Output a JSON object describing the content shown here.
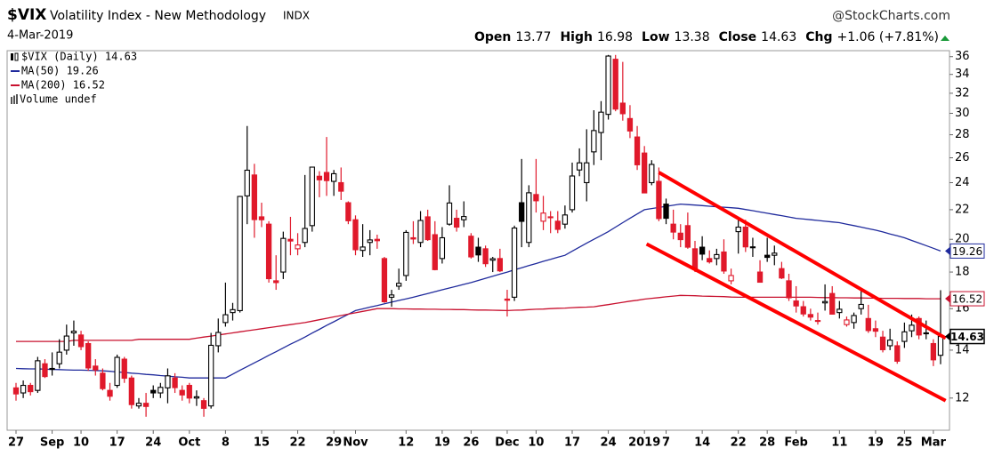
{
  "header": {
    "symbol": "$VIX",
    "name": "Volatility Index - New Methodology",
    "exchange": "INDX",
    "source": "@StockCharts.com",
    "date": "4-Mar-2019",
    "quote": [
      {
        "label": "Open",
        "value": "13.77"
      },
      {
        "label": "High",
        "value": "16.98"
      },
      {
        "label": "Low",
        "value": "13.38"
      },
      {
        "label": "Close",
        "value": "14.63"
      },
      {
        "label": "Chg",
        "value": "+1.06 (+7.81%)"
      }
    ]
  },
  "chart_data": {
    "type": "candlestick",
    "log_scale": true,
    "grid": false,
    "legend": "upper left",
    "up_color": "#000000",
    "down_color": "#e0192b",
    "volume_label": "Volume undef",
    "ylim": [
      10.82,
      36.7
    ],
    "yticks": [
      12,
      14,
      16,
      18,
      20,
      22,
      24,
      26,
      28,
      30,
      32,
      34,
      36
    ],
    "categories": [
      "27",
      null,
      null,
      null,
      null,
      "Sep",
      null,
      null,
      null,
      "10",
      null,
      null,
      null,
      null,
      "17",
      null,
      null,
      null,
      null,
      "24",
      null,
      null,
      null,
      null,
      "Oct",
      null,
      null,
      null,
      null,
      "8",
      null,
      null,
      null,
      null,
      "15",
      null,
      null,
      null,
      null,
      "22",
      null,
      null,
      null,
      null,
      "29",
      null,
      null,
      "Nov",
      null,
      null,
      null,
      null,
      null,
      null,
      "12",
      null,
      null,
      null,
      null,
      "19",
      null,
      null,
      null,
      "26",
      null,
      null,
      null,
      null,
      "Dec",
      null,
      null,
      null,
      "10",
      null,
      null,
      null,
      null,
      "17",
      null,
      null,
      null,
      null,
      "24",
      null,
      null,
      null,
      null,
      "2019",
      null,
      null,
      "7",
      null,
      null,
      null,
      null,
      "14",
      null,
      null,
      null,
      null,
      "22",
      null,
      null,
      null,
      "28",
      null,
      null,
      null,
      "Feb",
      null,
      null,
      null,
      null,
      null,
      "11",
      null,
      null,
      null,
      null,
      "19",
      null,
      null,
      null,
      "25",
      null,
      null,
      null,
      "Mar",
      null
    ],
    "series": [
      {
        "name": "$VIX (Daily) 14.63",
        "last_label": "14.63",
        "open": [
          12.4,
          12.2,
          12.5,
          12.3,
          13.4,
          13.2,
          13.4,
          14.0,
          14.8,
          14.7,
          14.3,
          13.3,
          13.0,
          12.3,
          12.5,
          13.6,
          12.8,
          11.7,
          11.8,
          12.3,
          12.2,
          12.4,
          12.8,
          12.3,
          12.5,
          12.0,
          11.9,
          11.7,
          14.2,
          15.3,
          15.8,
          15.9,
          23.0,
          24.6,
          21.5,
          21.0,
          17.5,
          18.0,
          20.0,
          19.4,
          19.8,
          20.9,
          24.5,
          24.8,
          24.1,
          24.0,
          22.5,
          21.3,
          19.3,
          19.8,
          20.0,
          18.8,
          16.6,
          17.2,
          17.8,
          20.1,
          19.8,
          21.5,
          20.3,
          18.8,
          21.0,
          21.4,
          21.3,
          20.2,
          19.5,
          19.4,
          18.7,
          18.8,
          16.5,
          16.6,
          22.5,
          19.8,
          23.1,
          21.2,
          21.5,
          21.2,
          21.0,
          22.0,
          25.0,
          24.0,
          26.5,
          28.2,
          29.9,
          35.7,
          31.0,
          29.5,
          27.8,
          26.4,
          24.0,
          24.1,
          22.4,
          21.0,
          20.4,
          20.9,
          19.4,
          19.5,
          18.8,
          18.8,
          19.2,
          17.5,
          20.5,
          20.8,
          19.5,
          18.0,
          19.0,
          19.0,
          18.2,
          17.5,
          16.4,
          16.1,
          15.7,
          15.4,
          16.3,
          16.8,
          15.8,
          15.2,
          15.3,
          16.0,
          15.5,
          15.0,
          14.6,
          14.2,
          14.2,
          14.4,
          14.9,
          15.5,
          14.8,
          14.3,
          13.77
        ],
        "high": [
          12.6,
          12.7,
          12.6,
          13.7,
          13.6,
          13.9,
          14.5,
          15.2,
          15.4,
          14.9,
          14.4,
          13.6,
          13.2,
          12.6,
          13.8,
          13.7,
          12.9,
          12.0,
          12.2,
          12.5,
          12.6,
          13.2,
          13.0,
          12.5,
          12.6,
          12.3,
          12.0,
          14.8,
          15.5,
          17.4,
          16.3,
          23.0,
          28.8,
          25.5,
          22.5,
          21.2,
          19.0,
          20.5,
          21.5,
          20.4,
          24.6,
          25.2,
          24.9,
          27.8,
          25.0,
          25.2,
          22.6,
          21.6,
          21.0,
          20.6,
          20.3,
          18.9,
          17.0,
          18.2,
          20.6,
          21.2,
          21.9,
          22.0,
          21.2,
          20.8,
          23.8,
          22.0,
          22.6,
          20.4,
          20.1,
          19.6,
          18.9,
          19.4,
          17.0,
          20.9,
          25.9,
          23.8,
          25.9,
          23.0,
          21.9,
          21.9,
          22.3,
          25.6,
          26.8,
          28.5,
          30.3,
          31.2,
          36.2,
          36.2,
          35.4,
          30.8,
          28.8,
          27.0,
          25.8,
          25.2,
          22.8,
          22.0,
          21.0,
          21.8,
          19.9,
          20.2,
          19.3,
          19.4,
          20.0,
          18.2,
          21.3,
          21.3,
          20.1,
          18.7,
          20.1,
          19.6,
          18.6,
          17.9,
          17.2,
          16.4,
          16.0,
          15.8,
          17.3,
          17.2,
          16.4,
          15.6,
          15.8,
          17.0,
          16.2,
          15.4,
          14.9,
          15.0,
          14.4,
          15.3,
          15.7,
          15.6,
          15.4,
          14.5,
          16.98
        ],
        "low": [
          11.9,
          12.0,
          12.1,
          12.2,
          12.8,
          12.9,
          13.2,
          13.8,
          14.2,
          14.0,
          13.1,
          12.9,
          12.3,
          11.9,
          12.4,
          12.6,
          11.6,
          11.6,
          11.3,
          12.0,
          12.0,
          11.8,
          12.2,
          11.9,
          11.8,
          11.7,
          11.3,
          11.6,
          13.9,
          15.1,
          15.4,
          15.8,
          21.0,
          20.1,
          20.8,
          17.4,
          17.0,
          17.6,
          19.0,
          19.0,
          19.5,
          20.5,
          22.9,
          23.0,
          23.0,
          22.7,
          21.0,
          19.0,
          18.9,
          19.0,
          19.4,
          16.3,
          16.1,
          17.0,
          17.5,
          19.7,
          19.5,
          19.9,
          18.1,
          18.5,
          20.9,
          20.5,
          20.8,
          18.8,
          18.6,
          18.3,
          18.0,
          18.0,
          15.6,
          16.4,
          19.5,
          19.5,
          21.8,
          20.6,
          20.4,
          20.4,
          20.7,
          21.8,
          24.5,
          22.6,
          25.4,
          25.8,
          29.4,
          30.2,
          29.3,
          27.7,
          25.0,
          23.2,
          23.8,
          21.2,
          21.0,
          20.0,
          19.5,
          19.4,
          18.0,
          18.7,
          18.5,
          18.4,
          17.9,
          17.3,
          19.1,
          19.2,
          18.9,
          17.4,
          18.6,
          18.4,
          17.6,
          16.4,
          15.8,
          15.6,
          15.4,
          15.2,
          15.9,
          15.7,
          15.5,
          15.1,
          15.0,
          15.7,
          14.8,
          14.6,
          13.9,
          14.0,
          13.4,
          14.1,
          14.6,
          14.5,
          14.5,
          13.3,
          13.38
        ],
        "close": [
          12.16,
          12.5,
          12.25,
          13.53,
          12.86,
          13.16,
          13.91,
          14.65,
          14.88,
          14.16,
          13.22,
          13.14,
          12.37,
          12.07,
          13.68,
          12.79,
          11.75,
          11.8,
          11.68,
          12.2,
          12.42,
          12.89,
          12.41,
          12.12,
          12.0,
          12.05,
          11.61,
          14.22,
          14.82,
          15.69,
          15.95,
          22.96,
          24.98,
          21.31,
          21.3,
          17.62,
          17.4,
          20.06,
          19.89,
          19.64,
          20.71,
          25.23,
          24.22,
          24.16,
          24.7,
          23.35,
          21.23,
          19.34,
          19.51,
          19.96,
          19.91,
          16.36,
          16.72,
          17.36,
          20.45,
          20.02,
          21.25,
          19.98,
          18.14,
          20.1,
          22.48,
          20.8,
          21.52,
          18.9,
          19.02,
          18.49,
          18.79,
          18.07,
          16.44,
          20.74,
          21.19,
          23.23,
          22.64,
          21.76,
          21.46,
          20.65,
          21.63,
          24.52,
          25.58,
          25.58,
          28.38,
          30.11,
          36.07,
          30.41,
          29.96,
          28.34,
          25.42,
          23.22,
          25.45,
          21.38,
          21.4,
          20.47,
          19.98,
          19.5,
          18.19,
          19.07,
          18.6,
          19.04,
          18.06,
          17.8,
          20.8,
          19.52,
          19.52,
          17.42,
          18.87,
          19.13,
          17.66,
          16.57,
          16.14,
          15.73,
          15.57,
          15.38,
          16.37,
          15.72,
          15.97,
          15.43,
          15.65,
          16.22,
          14.91,
          14.88,
          14.02,
          14.46,
          13.51,
          14.85,
          15.17,
          14.7,
          14.78,
          13.57,
          14.63
        ]
      },
      {
        "name": "MA(50) 19.26",
        "type": "line",
        "color": "#1f2a9c",
        "last_label": "19.26",
        "values": [
          13.2,
          13.19,
          13.18,
          13.18,
          13.17,
          13.16,
          13.15,
          13.14,
          13.13,
          13.13,
          13.12,
          13.11,
          13.1,
          13.08,
          13.05,
          13.03,
          13.0,
          12.98,
          12.95,
          12.93,
          12.9,
          12.88,
          12.85,
          12.83,
          12.8,
          12.8,
          12.8,
          12.8,
          12.8,
          12.8,
          12.96,
          13.12,
          13.28,
          13.44,
          13.6,
          13.77,
          13.93,
          14.1,
          14.27,
          14.43,
          14.6,
          14.79,
          14.97,
          15.16,
          15.34,
          15.53,
          15.71,
          15.9,
          15.99,
          16.08,
          16.16,
          16.25,
          16.34,
          16.43,
          16.51,
          16.6,
          16.7,
          16.8,
          16.9,
          17.0,
          17.1,
          17.2,
          17.3,
          17.4,
          17.52,
          17.64,
          17.76,
          17.88,
          18.0,
          18.13,
          18.25,
          18.38,
          18.5,
          18.63,
          18.75,
          18.88,
          19.0,
          19.25,
          19.5,
          19.75,
          20.0,
          20.25,
          20.5,
          20.8,
          21.1,
          21.4,
          21.7,
          22.0,
          22.08,
          22.16,
          22.24,
          22.32,
          22.4,
          22.36,
          22.33,
          22.29,
          22.25,
          22.21,
          22.18,
          22.14,
          22.1,
          22.01,
          21.93,
          21.84,
          21.75,
          21.66,
          21.58,
          21.49,
          21.4,
          21.35,
          21.3,
          21.25,
          21.2,
          21.15,
          21.1,
          21.0,
          20.9,
          20.8,
          20.7,
          20.6,
          20.48,
          20.35,
          20.23,
          20.1,
          19.93,
          19.76,
          19.6,
          19.43,
          19.26
        ]
      },
      {
        "name": "MA(200) 16.52",
        "type": "line",
        "color": "#c8102e",
        "last_label": "16.52",
        "values": [
          14.4,
          14.4,
          14.4,
          14.4,
          14.4,
          14.4,
          14.4,
          14.4,
          14.45,
          14.45,
          14.45,
          14.45,
          14.45,
          14.45,
          14.45,
          14.45,
          14.45,
          14.5,
          14.5,
          14.5,
          14.5,
          14.5,
          14.5,
          14.5,
          14.5,
          14.55,
          14.6,
          14.65,
          14.7,
          14.75,
          14.8,
          14.85,
          14.9,
          14.95,
          15.0,
          15.05,
          15.1,
          15.15,
          15.2,
          15.25,
          15.3,
          15.37,
          15.44,
          15.51,
          15.58,
          15.65,
          15.72,
          15.79,
          15.86,
          15.93,
          16.0,
          16.0,
          16.0,
          15.99,
          15.99,
          15.98,
          15.98,
          15.97,
          15.97,
          15.96,
          15.96,
          15.95,
          15.95,
          15.94,
          15.93,
          15.93,
          15.92,
          15.91,
          15.9,
          15.92,
          15.93,
          15.95,
          15.97,
          15.98,
          16.0,
          16.02,
          16.03,
          16.05,
          16.07,
          16.08,
          16.1,
          16.16,
          16.21,
          16.27,
          16.33,
          16.39,
          16.44,
          16.5,
          16.54,
          16.58,
          16.62,
          16.66,
          16.7,
          16.69,
          16.68,
          16.66,
          16.65,
          16.64,
          16.63,
          16.61,
          16.6,
          16.6,
          16.6,
          16.6,
          16.6,
          16.6,
          16.6,
          16.6,
          16.6,
          16.6,
          16.6,
          16.59,
          16.58,
          16.58,
          16.57,
          16.57,
          16.56,
          16.56,
          16.55,
          16.55,
          16.54,
          16.54,
          16.54,
          16.53,
          16.53,
          16.53,
          16.52,
          16.52,
          16.52
        ]
      }
    ],
    "trendlines": [
      {
        "color": "#ff0000",
        "x": [
          89,
          128.7
        ],
        "values": [
          24.8,
          14.55
        ]
      },
      {
        "color": "#ff0000",
        "x": [
          87.3,
          128.7
        ],
        "values": [
          19.7,
          11.9
        ]
      }
    ]
  }
}
